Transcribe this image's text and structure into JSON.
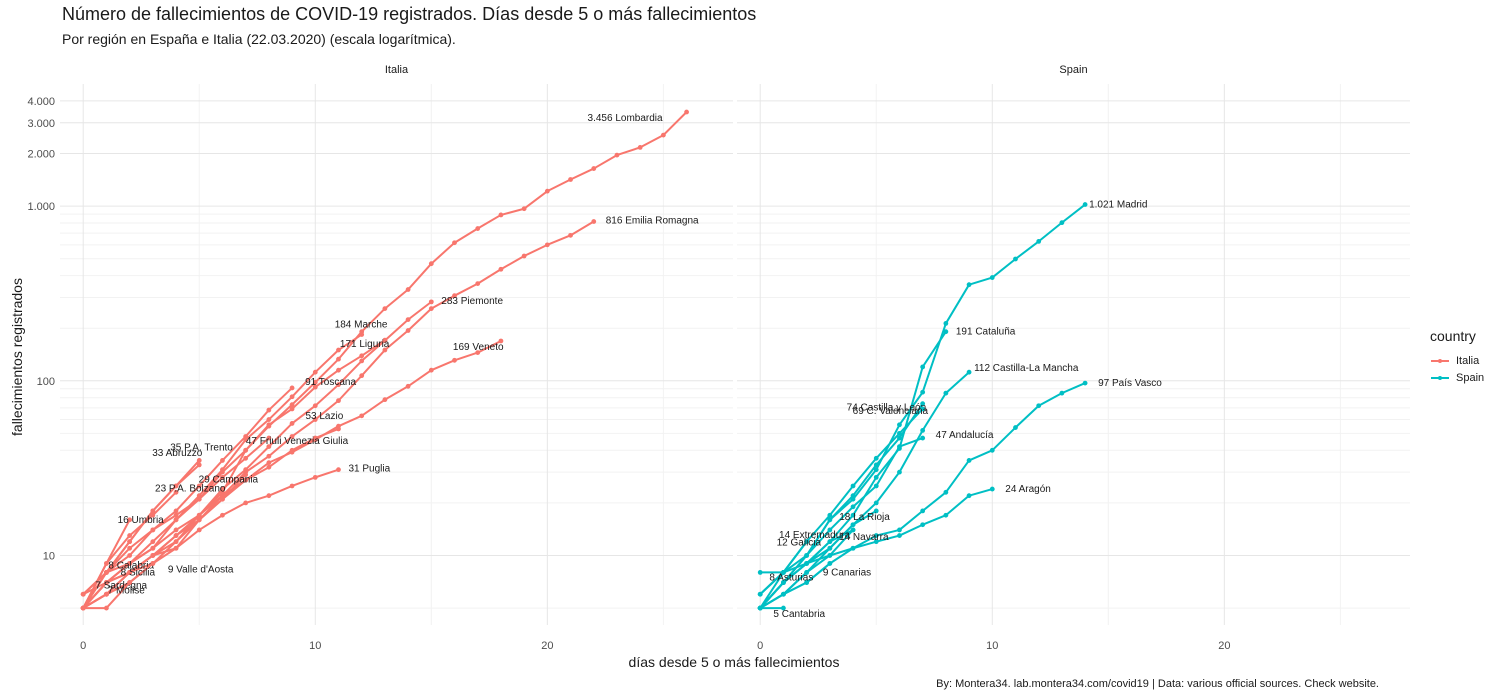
{
  "chart_data": {
    "type": "line",
    "title": "Número de fallecimientos de COVID-19 registrados. Días desde 5 o más fallecimientos",
    "subtitle": "Por región en España e Italia (22.03.2020) (escala logarítmica).",
    "xlabel": "días desde 5 o más fallecimientos",
    "ylabel": "fallecimientos registrados",
    "caption": "By: Montera34. lab.montera34.com/covid19 | Data: various official sources. Check website.",
    "yscale": "log10",
    "ylim": [
      4,
      5000
    ],
    "xlim": [
      -1,
      28
    ],
    "x_ticks": [
      0,
      10,
      20
    ],
    "y_ticks": [
      10,
      100,
      1000,
      2000,
      3000,
      4000
    ],
    "y_tick_labels": [
      "10",
      "100",
      "1.000",
      "2.000",
      "3.000",
      "4.000"
    ],
    "legend": {
      "title": "country",
      "entries": [
        {
          "name": "Italia",
          "color": "#F8766D"
        },
        {
          "name": "Spain",
          "color": "#00BFC4"
        }
      ]
    },
    "panels": [
      {
        "name": "Italia",
        "color": "#F8766D",
        "series": [
          {
            "name": "Lombardia",
            "label": "3.456 Lombardia",
            "values": [
              5,
              7,
              8,
              9,
              12,
              17,
              23,
              40,
              55,
              73,
              98,
              133,
              191,
              259,
              333,
              468,
              617,
              744,
              890,
              966,
              1218,
              1420,
              1640,
              1959,
              2168,
              2549,
              3456
            ]
          },
          {
            "name": "Emilia Romagna",
            "label": "816 Emilia Romagna",
            "values": [
              5,
              6,
              8,
              10,
              11,
              16,
              22,
              30,
              37,
              48,
              60,
              77,
              107,
              150,
              194,
              259,
              307,
              360,
              435,
              518,
              600,
              680,
              816
            ]
          },
          {
            "name": "Piemonte",
            "label": "283 Piemonte",
            "values": [
              5,
              6,
              8,
              10,
              13,
              17,
              24,
              31,
              42,
              57,
              72,
              95,
              130,
              170,
              224,
              283
            ]
          },
          {
            "name": "Marche",
            "label": "184 Marche",
            "values": [
              6,
              8,
              9,
              11,
              16,
              22,
              31,
              46,
              60,
              81,
              112,
              150,
              184
            ]
          },
          {
            "name": "Liguria",
            "label": "171 Liguria",
            "values": [
              6,
              8,
              10,
              14,
              17,
              21,
              30,
              40,
              56,
              69,
              92,
              115,
              139,
              171
            ]
          },
          {
            "name": "Veneto",
            "label": "169 Veneto",
            "values": [
              6,
              7,
              8,
              10,
              12,
              16,
              21,
              27,
              34,
              39,
              46,
              55,
              63,
              78,
              93,
              115,
              131,
              145,
              169
            ]
          },
          {
            "name": "Toscana",
            "label": "91 Toscana",
            "values": [
              6,
              8,
              11,
              14,
              18,
              25,
              35,
              48,
              68,
              91
            ]
          },
          {
            "name": "Lazio",
            "label": "53 Lazio",
            "values": [
              5,
              7,
              9,
              11,
              14,
              17,
              22,
              27,
              32,
              40,
              47,
              53
            ]
          },
          {
            "name": "Friuli Venezia Giulia",
            "label": "47 Friuli Venezia Giulia",
            "values": [
              5,
              7,
              9,
              12,
              16,
              21,
              28,
              36,
              47
            ]
          },
          {
            "name": "P.A. Trento",
            "label": "35 P.A. Trento",
            "values": [
              5,
              8,
              12,
              18,
              25,
              35
            ]
          },
          {
            "name": "Abruzzo",
            "label": "33 Abruzzo",
            "values": [
              5,
              8,
              12,
              18,
              25,
              33
            ]
          },
          {
            "name": "Puglia",
            "label": "31 Puglia",
            "values": [
              5,
              6,
              7,
              9,
              11,
              14,
              17,
              20,
              22,
              25,
              28,
              31
            ]
          },
          {
            "name": "Campania",
            "label": "29 Campania",
            "values": [
              5,
              6,
              8,
              10,
              13,
              16,
              21,
              29
            ]
          },
          {
            "name": "P.A. Bolzano",
            "label": "23 P.A. Bolzano",
            "values": [
              5,
              9,
              13,
              17,
              23
            ]
          },
          {
            "name": "Umbria",
            "label": "16 Umbria",
            "values": [
              5,
              9,
              16
            ]
          },
          {
            "name": "Calabria",
            "label": "8 Calabria",
            "values": [
              5,
              8
            ]
          },
          {
            "name": "Valle d'Aosta",
            "label": "9 Valle d'Aosta",
            "values": [
              5,
              6,
              7,
              9
            ]
          },
          {
            "name": "Sicilia",
            "label": "8 Sicilia",
            "values": [
              5,
              6,
              8
            ]
          },
          {
            "name": "Sardegna",
            "label": "7 Sardegna",
            "values": [
              5,
              7
            ]
          },
          {
            "name": "Molise",
            "label": "7 Molise",
            "values": [
              5,
              5,
              7
            ]
          }
        ]
      },
      {
        "name": "Spain",
        "color": "#00BFC4",
        "series": [
          {
            "name": "Madrid",
            "label": "1.021 Madrid",
            "values": [
              8,
              8,
              10,
              16,
              21,
              31,
              56,
              86,
              213,
              355,
              390,
              498,
              628,
              804,
              1021
            ]
          },
          {
            "name": "Cataluña",
            "label": "191 Cataluña",
            "values": [
              5,
              7,
              9,
              12,
              17,
              28,
              41,
              120,
              191
            ]
          },
          {
            "name": "Castilla-La Mancha",
            "label": "112 Castilla-La Mancha",
            "values": [
              5,
              6,
              8,
              11,
              15,
              20,
              30,
              52,
              85,
              112
            ]
          },
          {
            "name": "País Vasco",
            "label": "97 País Vasco",
            "values": [
              5,
              6,
              7,
              9,
              11,
              13,
              14,
              18,
              23,
              35,
              40,
              54,
              72,
              85,
              97
            ]
          },
          {
            "name": "Castilla y León",
            "label": "74 Castilla y León",
            "values": [
              5,
              7,
              10,
              16,
              22,
              33,
              47,
              74
            ]
          },
          {
            "name": "C. Valenciana",
            "label": "69 C. Valenciana",
            "values": [
              6,
              8,
              12,
              17,
              25,
              36,
              50,
              69
            ]
          },
          {
            "name": "Andalucía",
            "label": "47 Andalucía",
            "values": [
              5,
              7,
              10,
              14,
              19,
              25,
              42,
              47
            ]
          },
          {
            "name": "Aragón",
            "label": "24 Aragón",
            "values": [
              6,
              8,
              9,
              10,
              11,
              12,
              13,
              15,
              17,
              22,
              24
            ]
          },
          {
            "name": "La Rioja",
            "label": "18 La Rioja",
            "values": [
              5,
              7,
              9,
              11,
              15,
              18
            ]
          },
          {
            "name": "Extremadura",
            "label": "14 Extremadura",
            "values": [
              5,
              7,
              9,
              12,
              14
            ]
          },
          {
            "name": "Navarra",
            "label": "14 Navarra",
            "values": [
              5,
              6,
              8,
              10,
              14
            ]
          },
          {
            "name": "Galicia",
            "label": "12 Galicia",
            "values": [
              5,
              8,
              12
            ]
          },
          {
            "name": "Canarias",
            "label": "9 Canarias",
            "values": [
              5,
              6,
              7,
              9
            ]
          },
          {
            "name": "Asturias",
            "label": "8 Asturias",
            "values": [
              6,
              8
            ]
          },
          {
            "name": "Cantabria",
            "label": "5 Cantabria",
            "values": [
              5,
              5
            ]
          }
        ]
      }
    ]
  }
}
